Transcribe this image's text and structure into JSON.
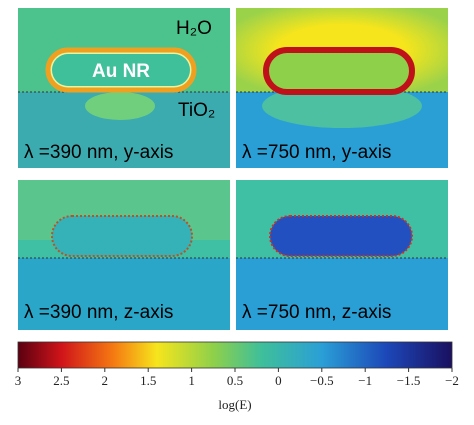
{
  "panels": [
    {
      "medium_top": "H₂O",
      "medium_bottom": "TiO₂",
      "particle": "Au NR",
      "caption": "λ =390 nm, y-axis"
    },
    {
      "caption": "λ =750 nm, y-axis"
    },
    {
      "caption": "λ =390 nm, z-axis"
    },
    {
      "caption": "λ =750 nm, z-axis"
    }
  ],
  "colorbar": {
    "lim": [
      3,
      -2
    ],
    "ticks": [
      3,
      2.5,
      2,
      1.5,
      1,
      0.5,
      0,
      {
        "value": -0.5,
        "label": "−0.5"
      },
      {
        "value": -1,
        "label": "−1"
      },
      {
        "value": -1.5,
        "label": "−1.5"
      },
      {
        "value": -2,
        "label": "−2"
      }
    ],
    "label": "log(E)"
  }
}
